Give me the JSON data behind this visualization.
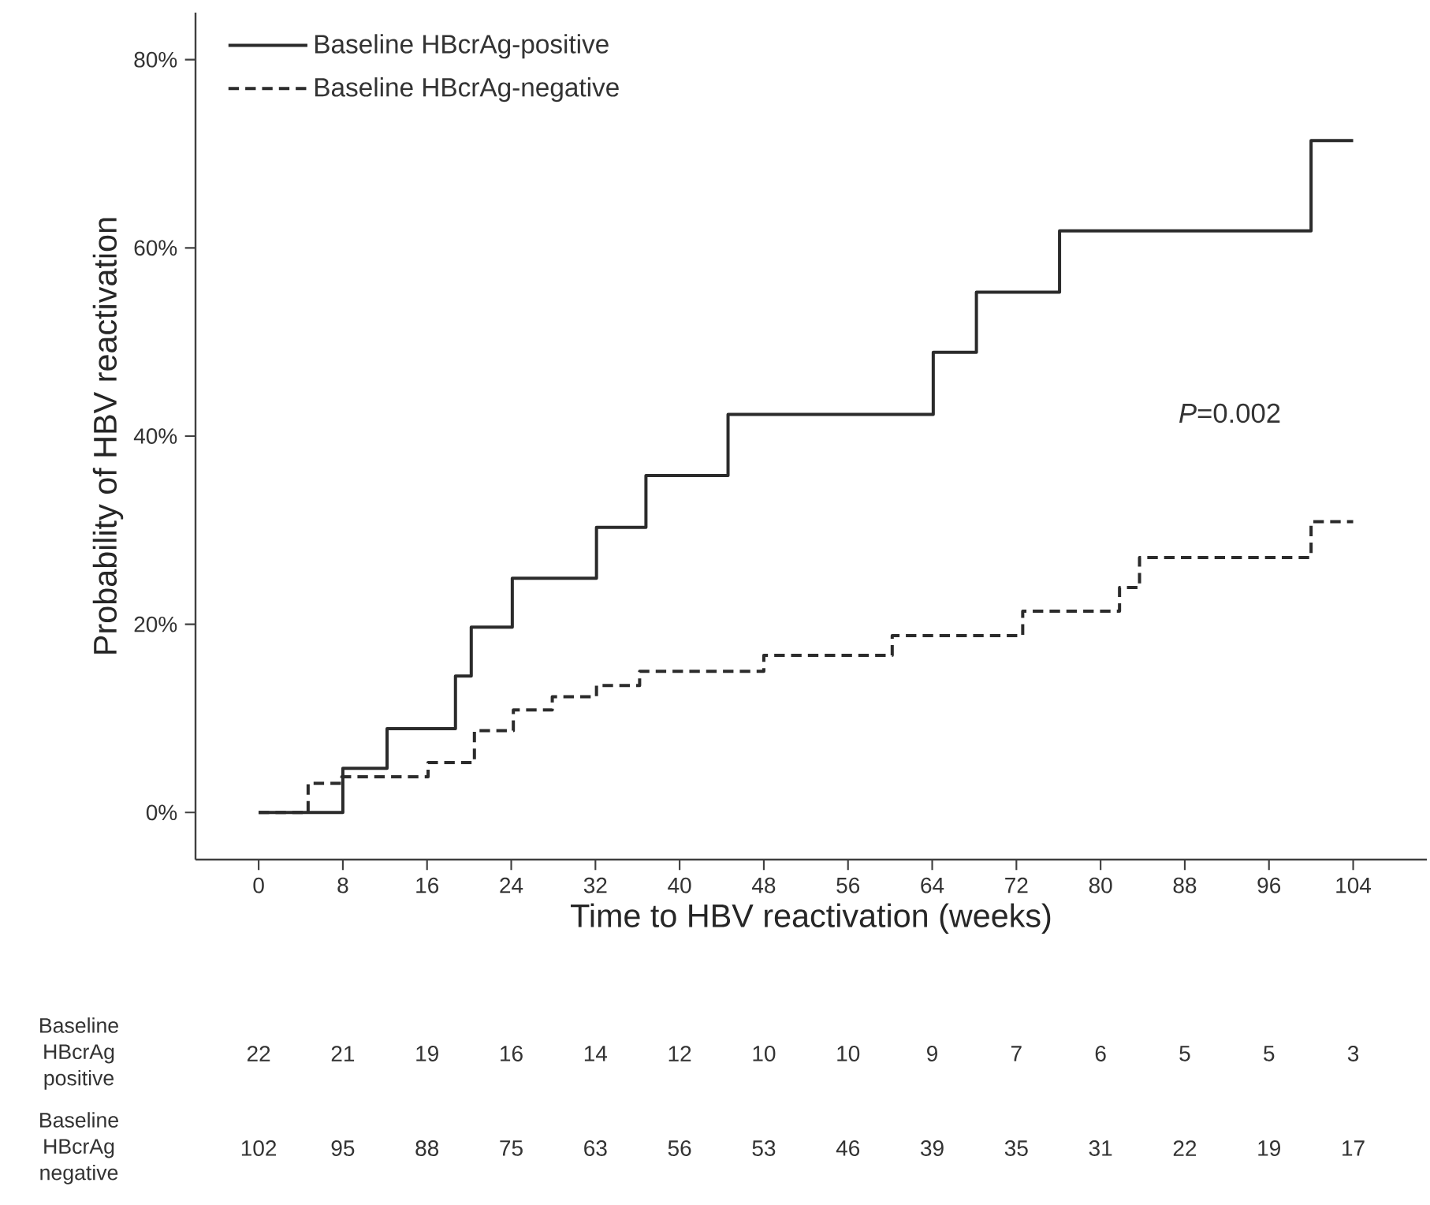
{
  "chart_data": {
    "type": "step",
    "xlabel": "Time to HBV reactivation (weeks)",
    "ylabel": "Probability of HBV reactivation",
    "xlim": [
      -6,
      111
    ],
    "xticks": [
      0,
      8,
      16,
      24,
      32,
      40,
      48,
      56,
      64,
      72,
      80,
      88,
      96,
      104
    ],
    "ylim": [
      -5,
      85
    ],
    "yticks": [
      {
        "value": 0,
        "label": "0%"
      },
      {
        "value": 20,
        "label": "20%"
      },
      {
        "value": 40,
        "label": "40%"
      },
      {
        "value": 60,
        "label": "60%"
      },
      {
        "value": 80,
        "label": "80%"
      }
    ],
    "legend": "top left",
    "grid": false,
    "marker": "none",
    "series": [
      {
        "name": "Baseline HBcrAg-positive",
        "color": "#2b2b2b",
        "line_style": "solid",
        "x": [
          0,
          8,
          12.2,
          18.7,
          20.2,
          24.1,
          32.1,
          36.8,
          44.6,
          64.1,
          68.2,
          76.1,
          100,
          104
        ],
        "values": [
          0,
          4.7,
          8.9,
          14.5,
          19.7,
          24.9,
          30.3,
          35.8,
          42.3,
          48.9,
          55.3,
          61.8,
          71.4,
          71.4
        ]
      },
      {
        "name": "Baseline HBcrAg-negative",
        "color": "#2b2b2b",
        "line_style": "dashed",
        "x": [
          0,
          4.7,
          7.9,
          16.1,
          20.5,
          24.2,
          27.9,
          32.1,
          36.2,
          48,
          60.2,
          72.6,
          81.8,
          83.7,
          100,
          104
        ],
        "values": [
          0,
          3.1,
          3.8,
          5.3,
          8.7,
          10.9,
          12.3,
          13.5,
          15,
          16.7,
          18.8,
          21.4,
          23.9,
          27.1,
          30.9,
          30.9
        ]
      }
    ],
    "annotations": [
      "*P*=0.002",
      "Baseline HBcrAg positive",
      "22",
      "21",
      "19",
      "16",
      "14",
      "12",
      "10",
      "10",
      "9",
      "7",
      "6",
      "5",
      "5",
      "3",
      "Baseline HBcrAg negative",
      "102",
      "95",
      "88",
      "75",
      "63",
      "56",
      "53",
      "46",
      "39",
      "35",
      "31",
      "22",
      "19",
      "17"
    ]
  }
}
